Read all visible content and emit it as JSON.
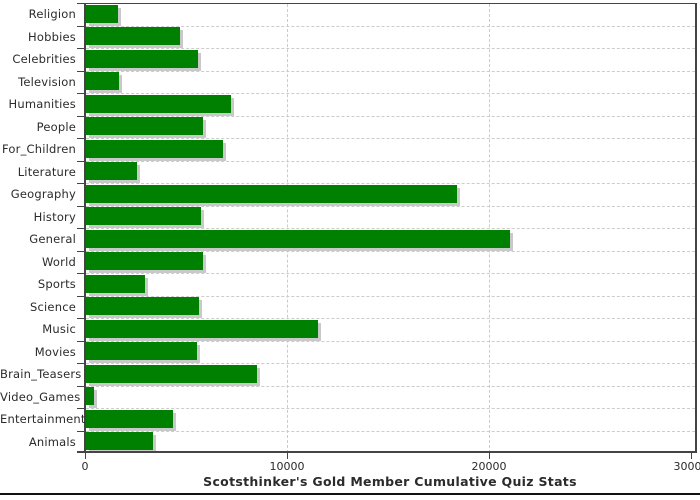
{
  "chart_data": {
    "type": "bar",
    "orientation": "horizontal",
    "title": "Scotsthinker's Gold Member Cumulative Quiz Stats",
    "categories": [
      "Religion",
      "Hobbies",
      "Celebrities",
      "Television",
      "Humanities",
      "People",
      "For_Children",
      "Literature",
      "Geography",
      "History",
      "General",
      "World",
      "Sports",
      "Science",
      "Music",
      "Movies",
      "Brain_Teasers",
      "Video_Games",
      "Entertainment",
      "Animals"
    ],
    "values": [
      1570,
      4650,
      5530,
      1650,
      7180,
      5800,
      6790,
      2510,
      18350,
      5700,
      21000,
      5810,
      2940,
      5610,
      11480,
      5490,
      8490,
      410,
      4290,
      3330
    ],
    "xlim": [
      0,
      30000
    ],
    "x_ticks": [
      0,
      10000,
      20000,
      30000
    ],
    "x_tick_labels": [
      "0",
      "10000",
      "20000",
      "30000"
    ],
    "grid": "dashed",
    "legend": "none",
    "colors": {
      "bar": "#008000",
      "bar_shadow": "#c9c9c9",
      "grid": "#cccccc",
      "axis": "#444444",
      "text": "#2b2b2b",
      "background": "#ffffff",
      "bottom_rule": "#111111"
    }
  }
}
